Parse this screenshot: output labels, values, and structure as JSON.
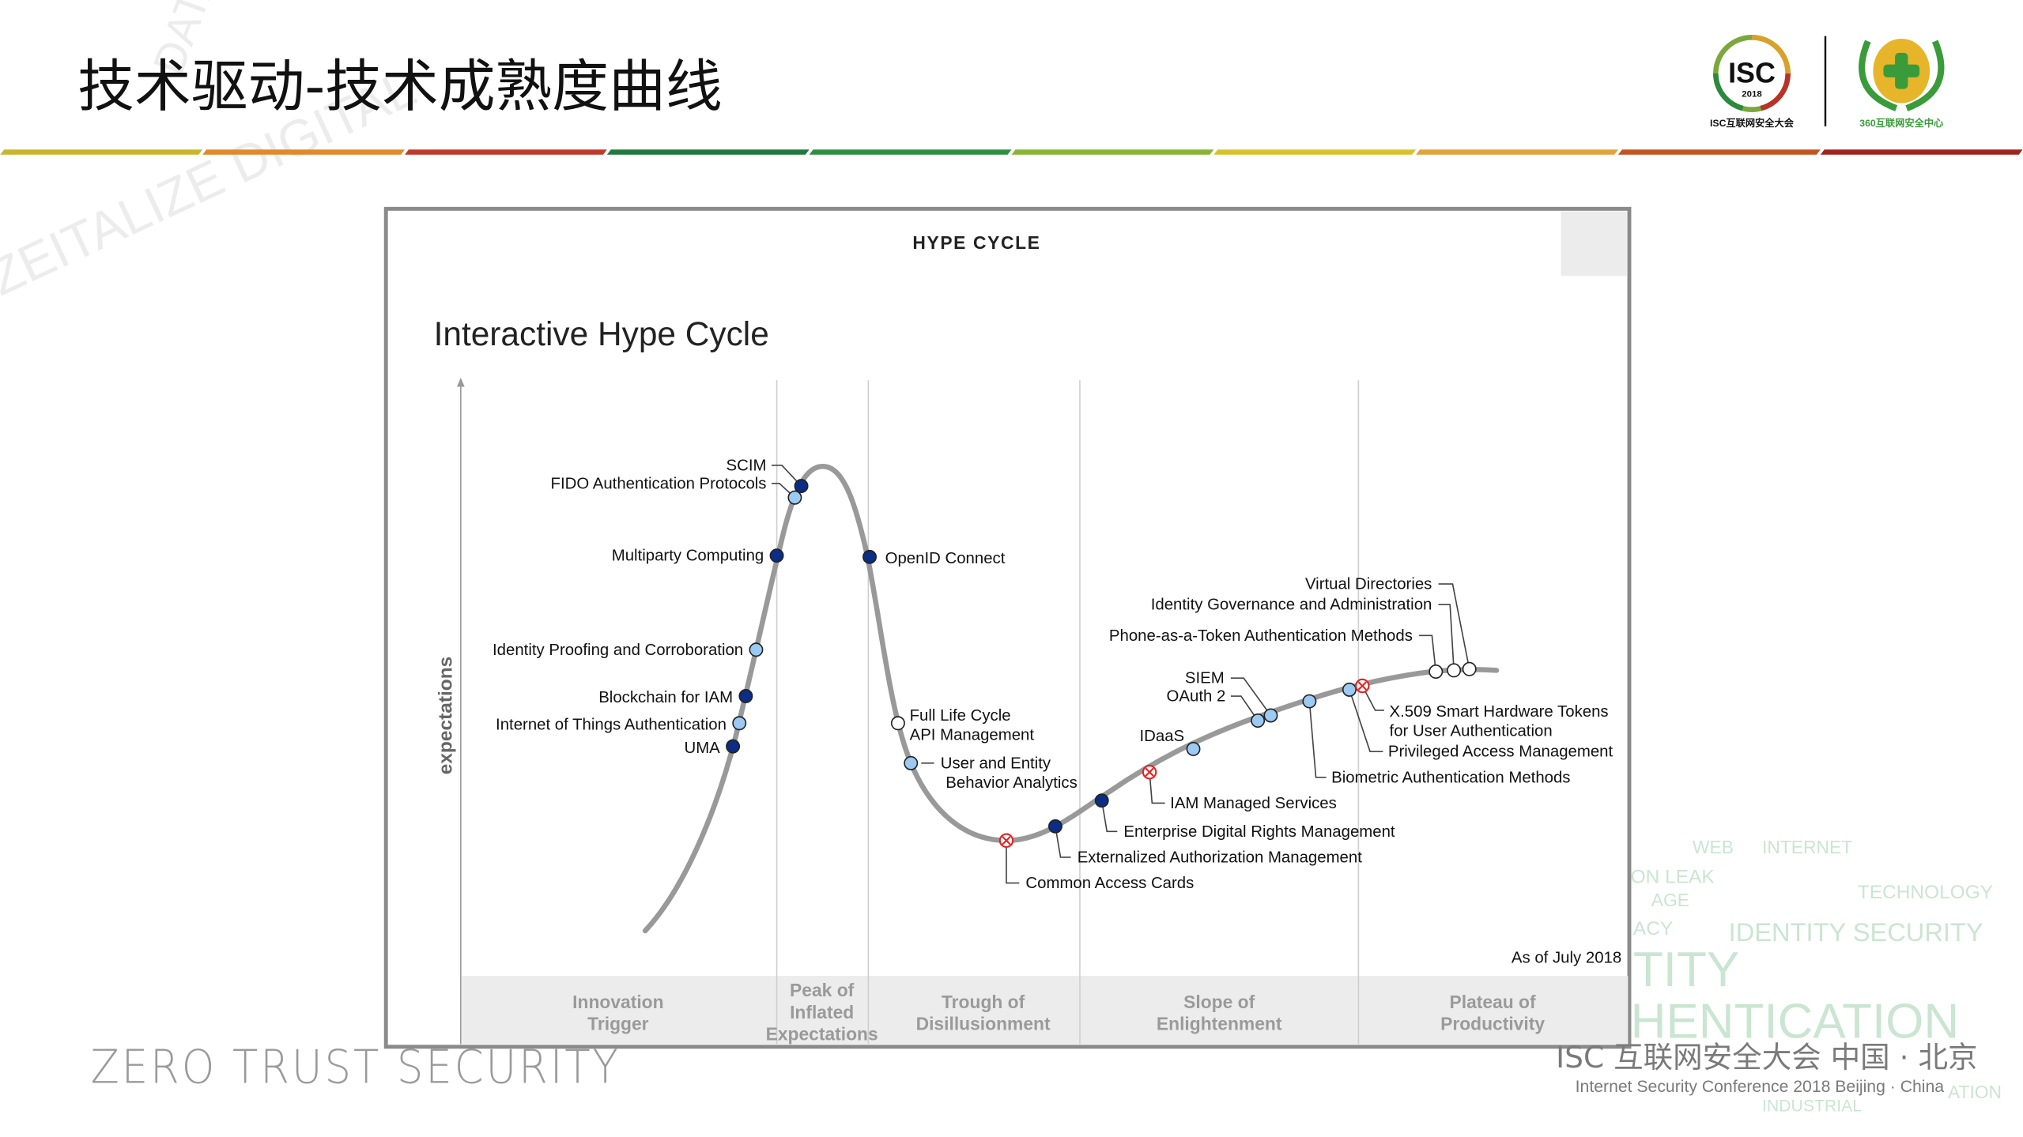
{
  "slide": {
    "title": "技术驱动-技术成熟度曲线",
    "footer_left": "ZERO TRUST SECURITY",
    "footer_right_cn": "ISC 互联网安全大会 中国 · 北京",
    "footer_right_en": "Internet Security Conference 2018   Beijing · China",
    "logo_isc": {
      "text": "ISC",
      "year": "2018",
      "caption": "ISC互联网安全大会"
    },
    "logo_360": {
      "caption": "360互联网安全中心"
    },
    "watermark_words": [
      "WEB",
      "INTERNET",
      "ON LEAK",
      "AGE",
      "TECHNOLOGY",
      "ACY",
      "IDENTITY SECURITY",
      "TITY",
      "HENTICATION",
      "INDUSTRIAL",
      "ATION"
    ],
    "stripe_colors": [
      "#c9b52c",
      "#e08a2c",
      "#c0392b",
      "#1f7a3d",
      "#2f8f3f",
      "#8ab431",
      "#d8c22c",
      "#e2a33a",
      "#c4541f",
      "#a3221f"
    ]
  },
  "figure": {
    "header": "HYPE CYCLE",
    "title": "Interactive Hype Cycle",
    "y_axis_label": "expectations",
    "as_of": "As of July 2018",
    "phases": [
      {
        "lines": [
          "Innovation",
          "Trigger"
        ]
      },
      {
        "lines": [
          "Peak of",
          "Inflated",
          "Expectations"
        ]
      },
      {
        "lines": [
          "Trough of",
          "Disillusionment"
        ]
      },
      {
        "lines": [
          "Slope of",
          "Enlightenment"
        ]
      },
      {
        "lines": [
          "Plateau of",
          "Productivity"
        ]
      }
    ],
    "legend_colors": {
      "dark": "#0b2d84",
      "light": "#9ccaf2",
      "white": "#ffffff",
      "obsolete": "#e32222",
      "curve": "#999999"
    },
    "technologies": [
      {
        "name": "SCIM",
        "marker": "dark"
      },
      {
        "name": "FIDO Authentication Protocols",
        "marker": "light"
      },
      {
        "name": "Multiparty Computing",
        "marker": "dark"
      },
      {
        "name": "OpenID Connect",
        "marker": "dark"
      },
      {
        "name": "Identity Proofing and Corroboration",
        "marker": "light"
      },
      {
        "name": "Blockchain for IAM",
        "marker": "dark"
      },
      {
        "name": "Internet of Things Authentication",
        "marker": "light"
      },
      {
        "name": "UMA",
        "marker": "dark"
      },
      {
        "name": "Full Life Cycle",
        "name2": "API Management",
        "marker": "white"
      },
      {
        "name": "User and Entity",
        "name2": "Behavior Analytics",
        "marker": "light"
      },
      {
        "name": "Common Access Cards",
        "marker": "obsolete"
      },
      {
        "name": "Externalized Authorization Management",
        "marker": "dark"
      },
      {
        "name": "Enterprise Digital Rights Management",
        "marker": "dark"
      },
      {
        "name": "IAM Managed Services",
        "marker": "obsolete"
      },
      {
        "name": "IDaaS",
        "marker": "light"
      },
      {
        "name": "OAuth 2",
        "marker": "light"
      },
      {
        "name": "SIEM",
        "marker": "light"
      },
      {
        "name": "Biometric Authentication Methods",
        "marker": "light"
      },
      {
        "name": "Privileged Access Management",
        "marker": "light"
      },
      {
        "name": "X.509 Smart Hardware Tokens",
        "name2": "for User Authentication",
        "marker": "obsolete"
      },
      {
        "name": "Phone-as-a-Token Authentication Methods",
        "marker": "white"
      },
      {
        "name": "Identity Governance and Administration",
        "marker": "white"
      },
      {
        "name": "Virtual Directories",
        "marker": "white"
      }
    ]
  }
}
